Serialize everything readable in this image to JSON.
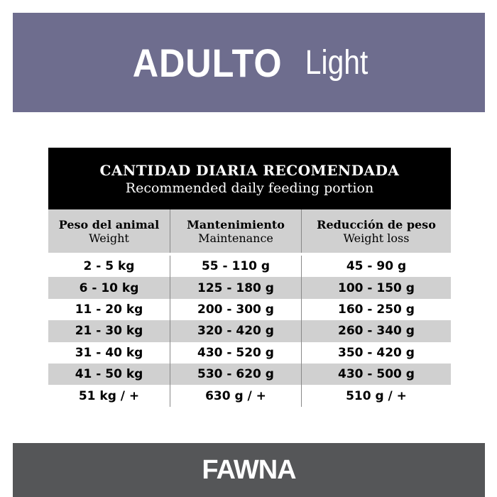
{
  "banner": {
    "bold": "ADULTO",
    "light": "Light",
    "color": "#6e6d8e"
  },
  "table": {
    "title": "CANTIDAD DIARIA RECOMENDADA",
    "subtitle": "Recommended daily feeding portion",
    "columns": [
      {
        "es": "Peso del animal",
        "en": "Weight"
      },
      {
        "es": "Mantenimiento",
        "en": "Maintenance"
      },
      {
        "es": "Reducción de peso",
        "en": "Weight loss"
      }
    ],
    "rows": [
      [
        "2 - 5 kg",
        "55 - 110 g",
        "45 - 90 g"
      ],
      [
        "6 - 10 kg",
        "125 - 180 g",
        "100 - 150 g"
      ],
      [
        "11 - 20 kg",
        "200 - 300 g",
        "160 - 250 g"
      ],
      [
        "21 - 30 kg",
        "320 - 420 g",
        "260 - 340 g"
      ],
      [
        "31 - 40 kg",
        "430 - 520 g",
        "350 - 420 g"
      ],
      [
        "41 - 50 kg",
        "530 - 620 g",
        "430 - 500 g"
      ],
      [
        "51 kg / +",
        "630 g / +",
        "510 g / +"
      ]
    ]
  },
  "footer": {
    "logo": "FAWNA",
    "color": "#555658"
  }
}
